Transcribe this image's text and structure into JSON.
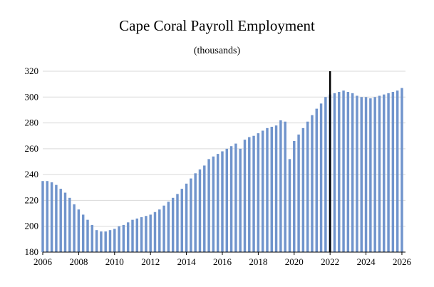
{
  "chart_data": {
    "type": "bar",
    "title": "Cape Coral Payroll Employment",
    "subtitle": "(thousands)",
    "xlabel": "",
    "ylabel": "",
    "ylim": [
      180,
      320
    ],
    "xlim": [
      2006,
      2026.2
    ],
    "yticks": [
      "180",
      "200",
      "220",
      "240",
      "260",
      "280",
      "300",
      "320"
    ],
    "xticks": [
      "2006",
      "2008",
      "2010",
      "2012",
      "2014",
      "2016",
      "2018",
      "2020",
      "2022",
      "2024",
      "2026"
    ],
    "grid": true,
    "forecast_marker": 2022.0,
    "bar_color": "#7094CC",
    "marker_color": "#000000",
    "series": [
      {
        "x": [
          2006.0,
          2006.25,
          2006.5,
          2006.75,
          2007.0,
          2007.25,
          2007.5,
          2007.75,
          2008.0,
          2008.25,
          2008.5,
          2008.75,
          2009.0,
          2009.25,
          2009.5,
          2009.75,
          2010.0,
          2010.25,
          2010.5,
          2010.75,
          2011.0,
          2011.25,
          2011.5,
          2011.75,
          2012.0,
          2012.25,
          2012.5,
          2012.75,
          2013.0,
          2013.25,
          2013.5,
          2013.75,
          2014.0,
          2014.25,
          2014.5,
          2014.75,
          2015.0,
          2015.25,
          2015.5,
          2015.75,
          2016.0,
          2016.25,
          2016.5,
          2016.75,
          2017.0,
          2017.25,
          2017.5,
          2017.75,
          2018.0,
          2018.25,
          2018.5,
          2018.75,
          2019.0,
          2019.25,
          2019.5,
          2019.75,
          2020.0,
          2020.25,
          2020.5,
          2020.75,
          2021.0,
          2021.25,
          2021.5,
          2021.75,
          2022.0,
          2022.25,
          2022.5,
          2022.75,
          2023.0,
          2023.25,
          2023.5,
          2023.75,
          2024.0,
          2024.25,
          2024.5,
          2024.75,
          2025.0,
          2025.25,
          2025.5,
          2025.75,
          2026.0
        ],
        "values": [
          235,
          235,
          234,
          232,
          229,
          226,
          222,
          217,
          213,
          209,
          205,
          201,
          197,
          196,
          196,
          197,
          198,
          200,
          201,
          203,
          205,
          206,
          207,
          208,
          209,
          211,
          213,
          216,
          219,
          222,
          225,
          229,
          233,
          237,
          241,
          244,
          247,
          252,
          254,
          256,
          258,
          260,
          262,
          264,
          260,
          267,
          269,
          270,
          272,
          274,
          276,
          277,
          278,
          282,
          281,
          252,
          266,
          271,
          276,
          281,
          286,
          291,
          295,
          300,
          302,
          303,
          304,
          305,
          304,
          303,
          301,
          300,
          300,
          299,
          300,
          301,
          302,
          303,
          304,
          305,
          307
        ]
      }
    ]
  }
}
